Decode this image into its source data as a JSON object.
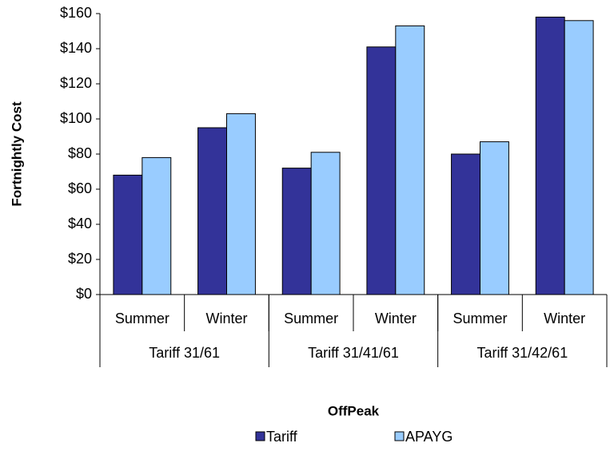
{
  "chart_data": {
    "type": "bar",
    "y_label": "Fortnightly Cost",
    "x_label": "OffPeak",
    "categories": [
      "Summer",
      "Winter",
      "Summer",
      "Winter",
      "Summer",
      "Winter"
    ],
    "groups": [
      "Tariff 31/61",
      "Tariff 31/41/61",
      "Tariff 31/42/61"
    ],
    "series": [
      {
        "name": "Tariff",
        "color": "#333399",
        "values": [
          68,
          95,
          72,
          141,
          80,
          158
        ]
      },
      {
        "name": "APAYG",
        "color": "#99ccff",
        "values": [
          78,
          103,
          81,
          153,
          87,
          156
        ]
      }
    ],
    "ylim": [
      0,
      160
    ],
    "yticks": [
      {
        "value": 0,
        "label": "$0"
      },
      {
        "value": 20,
        "label": "$20"
      },
      {
        "value": 40,
        "label": "$40"
      },
      {
        "value": 60,
        "label": "$60"
      },
      {
        "value": 80,
        "label": "$80"
      },
      {
        "value": 100,
        "label": "$100"
      },
      {
        "value": 120,
        "label": "$120"
      },
      {
        "value": 140,
        "label": "$140"
      },
      {
        "value": 160,
        "label": "$160"
      }
    ],
    "legend": "bottom"
  }
}
